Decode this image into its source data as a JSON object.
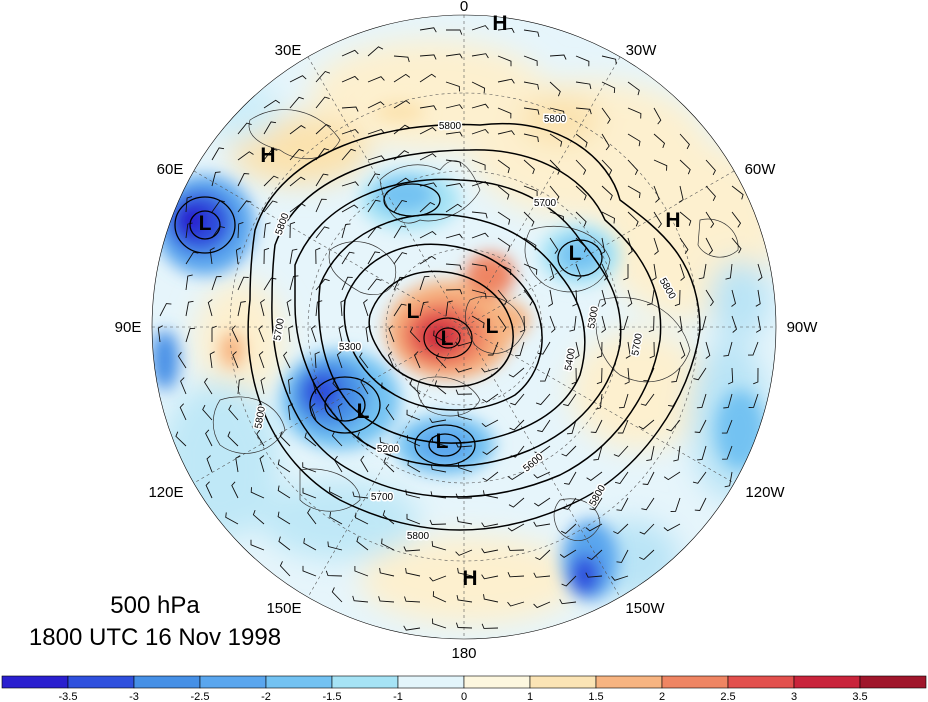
{
  "info": {
    "level": "500 hPa",
    "valid_time": "1800 UTC 16 Nov 1998"
  },
  "longitude_labels": {
    "deg0": "0",
    "e30": "30E",
    "w30": "30W",
    "e60": "60E",
    "w60": "60W",
    "e90": "90E",
    "w90": "90W",
    "e120": "120E",
    "w120": "120W",
    "e150": "150E",
    "w150": "150W",
    "deg180": "180"
  },
  "contour_labels": [
    "5800",
    "5800",
    "5700",
    "5700",
    "5800",
    "5800",
    "5800",
    "5700",
    "5300",
    "5200",
    "5700",
    "5800",
    "5800",
    "5400",
    "5300",
    "5600"
  ],
  "pressure_centers": [
    "H",
    "H",
    "H",
    "H",
    "L",
    "L",
    "L",
    "L",
    "L",
    "L",
    "L"
  ],
  "colorbar": {
    "ticks": [
      "-3.5",
      "-3",
      "-2.5",
      "-2",
      "-1.5",
      "-1",
      "0",
      "1",
      "1.5",
      "2",
      "2.5",
      "3",
      "3.5"
    ],
    "colors": [
      "#2a1fcf",
      "#2f50dd",
      "#4690e6",
      "#5aa6ee",
      "#73c2f2",
      "#a6e3f5",
      "#e3f5fb",
      "#fdf7df",
      "#fbe4b5",
      "#f7b481",
      "#ef8563",
      "#e2504d",
      "#c9243b",
      "#a0162b"
    ]
  }
}
